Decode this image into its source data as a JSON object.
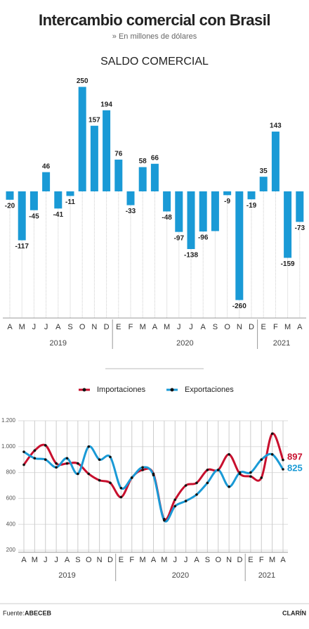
{
  "title": "Intercambio comercial con Brasil",
  "subtitle": "» En millones de dólares",
  "chart_data": [
    {
      "type": "bar",
      "title": "SALDO COMERCIAL",
      "color": "#1a9ad6",
      "categories": [
        "A",
        "M",
        "J",
        "J",
        "A",
        "S",
        "O",
        "N",
        "D",
        "E",
        "F",
        "M",
        "A",
        "M",
        "J",
        "J",
        "A",
        "S",
        "O",
        "N",
        "D",
        "E",
        "F",
        "M",
        "A"
      ],
      "years": [
        "2019",
        "2020",
        "2021"
      ],
      "values": [
        -20,
        -117,
        -45,
        46,
        -41,
        -11,
        250,
        157,
        194,
        76,
        -33,
        58,
        66,
        -48,
        -97,
        -138,
        -96,
        -95,
        -9,
        -260,
        -19,
        35,
        143,
        -159,
        -73
      ],
      "value_labels": [
        "-20",
        "-117",
        "-45",
        "46",
        "-41",
        "-11",
        "250",
        "157",
        "194",
        "76",
        "-33",
        "58",
        "66",
        "-48",
        "-97",
        "-138",
        "-96",
        null,
        "-9",
        "-260",
        "-19",
        "35",
        "143",
        "-159",
        "-73"
      ]
    },
    {
      "type": "line",
      "categories": [
        "A",
        "M",
        "J",
        "J",
        "A",
        "S",
        "O",
        "N",
        "D",
        "E",
        "F",
        "M",
        "A",
        "M",
        "J",
        "J",
        "A",
        "S",
        "O",
        "N",
        "D",
        "E",
        "F",
        "M",
        "A"
      ],
      "years": [
        "2019",
        "2020",
        "2021"
      ],
      "ylim": [
        200,
        1200
      ],
      "yticks": [
        {
          "value": 1200,
          "label": "1.200"
        },
        {
          "value": 1000,
          "label": "1.000"
        },
        800,
        600,
        400,
        200
      ],
      "grid": true,
      "series": [
        {
          "name": "Importaciones",
          "color": "#c8102e",
          "values": [
            860,
            970,
            1010,
            870,
            870,
            870,
            790,
            740,
            720,
            610,
            760,
            820,
            790,
            440,
            590,
            700,
            720,
            820,
            820,
            940,
            790,
            770,
            760,
            1100,
            897
          ]
        },
        {
          "name": "Exportaciones",
          "color": "#1a9ad6",
          "values": [
            960,
            910,
            900,
            840,
            910,
            790,
            1000,
            900,
            920,
            680,
            760,
            840,
            780,
            430,
            540,
            580,
            630,
            720,
            820,
            690,
            800,
            800,
            900,
            940,
            825
          ]
        }
      ]
    }
  ],
  "footer": {
    "source_label": "Fuente:",
    "source": "ABECEB",
    "brand": "CLARÍN"
  }
}
